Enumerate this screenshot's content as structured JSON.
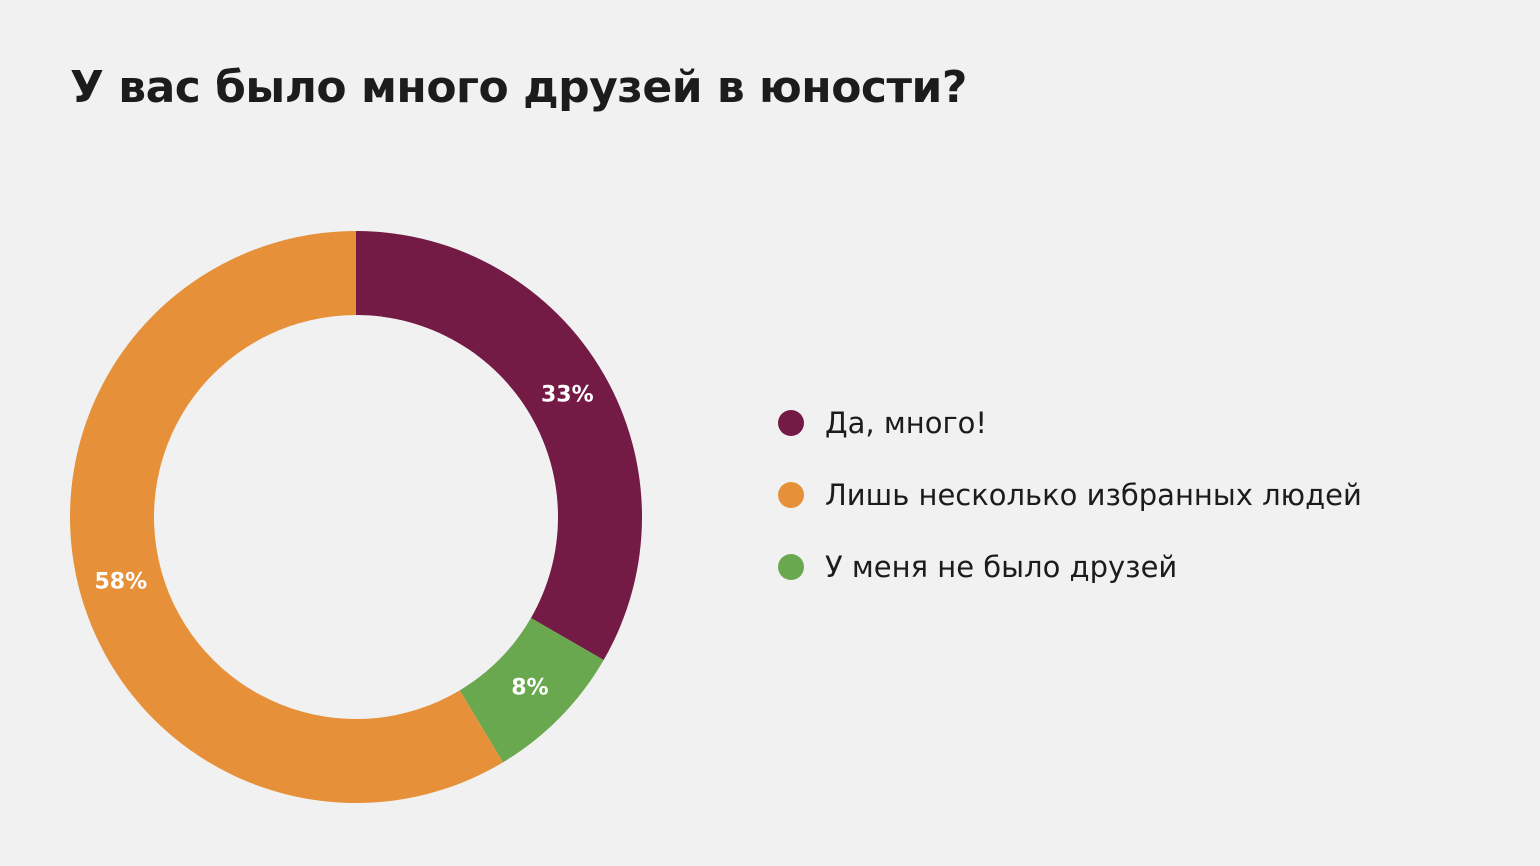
{
  "chart_data": {
    "type": "pie",
    "title": "У вас было много друзей в юности?",
    "slices": [
      {
        "label": "Да, много!",
        "value": 33,
        "value_label": "33%",
        "color": "#731a45"
      },
      {
        "label": "Лишь несколько избранных людей",
        "value": 58,
        "value_label": "58%",
        "color": "#e69139"
      },
      {
        "label": "У меня не было друзей",
        "value": 8,
        "value_label": "8%",
        "color": "#6aa84f"
      }
    ],
    "slice_order_clockwise_from_top": [
      "Да, много!",
      "У меня не было друзей",
      "Лишь несколько избранных людей"
    ],
    "legend_position": "right",
    "donut": true
  }
}
